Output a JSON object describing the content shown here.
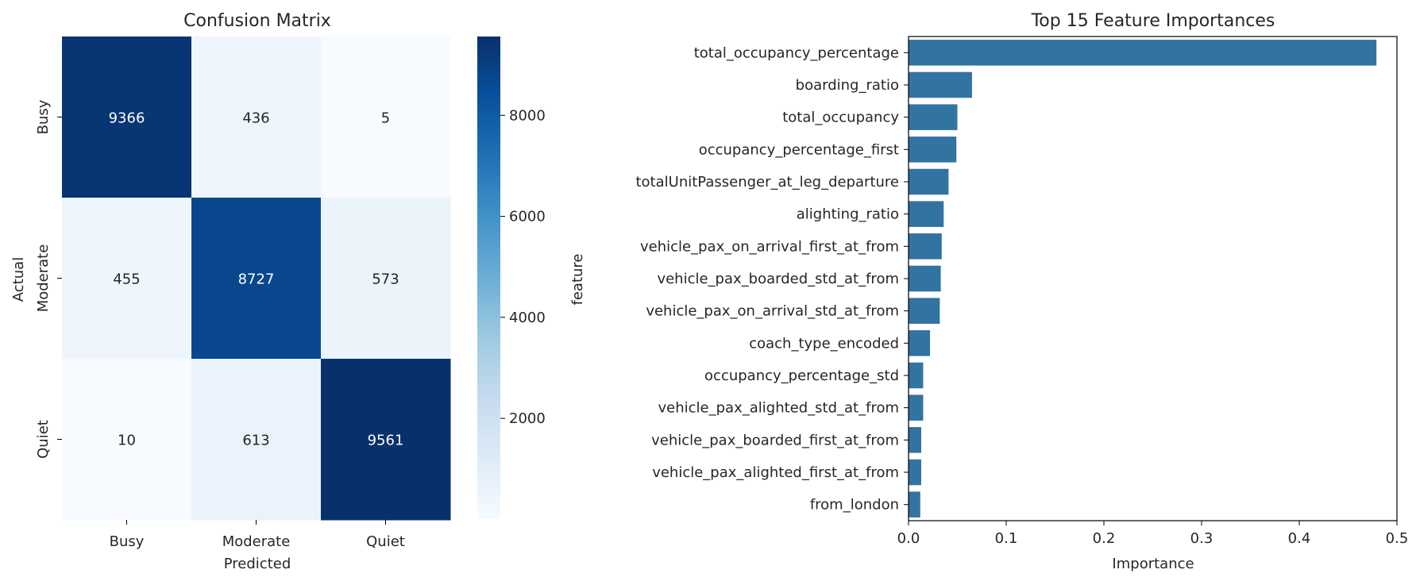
{
  "chart_data": [
    {
      "type": "heatmap",
      "title": "Confusion Matrix",
      "xlabel": "Predicted",
      "ylabel": "Actual",
      "x_categories": [
        "Busy",
        "Moderate",
        "Quiet"
      ],
      "y_categories": [
        "Busy",
        "Moderate",
        "Quiet"
      ],
      "values": [
        [
          9366,
          436,
          5
        ],
        [
          455,
          8727,
          573
        ],
        [
          10,
          613,
          9561
        ]
      ],
      "colormap": "Blues",
      "colorbar": {
        "ticks": [
          2000,
          4000,
          6000,
          8000
        ],
        "range": [
          5,
          9561
        ]
      }
    },
    {
      "type": "bar",
      "orientation": "horizontal",
      "title": "Top 15 Feature Importances",
      "xlabel": "Importance",
      "ylabel": "feature",
      "categories": [
        "total_occupancy_percentage",
        "boarding_ratio",
        "total_occupancy",
        "occupancy_percentage_first",
        "totalUnitPassenger_at_leg_departure",
        "alighting_ratio",
        "vehicle_pax_on_arrival_first_at_from",
        "vehicle_pax_boarded_std_at_from",
        "vehicle_pax_on_arrival_std_at_from",
        "coach_type_encoded",
        "occupancy_percentage_std",
        "vehicle_pax_alighted_std_at_from",
        "vehicle_pax_boarded_first_at_from",
        "vehicle_pax_alighted_first_at_from",
        "from_london"
      ],
      "values": [
        0.479,
        0.065,
        0.05,
        0.049,
        0.041,
        0.036,
        0.034,
        0.033,
        0.032,
        0.022,
        0.015,
        0.015,
        0.013,
        0.013,
        0.012
      ],
      "xlim": [
        0,
        0.5
      ],
      "xticks": [
        0.0,
        0.1,
        0.2,
        0.3,
        0.4,
        0.5
      ],
      "bar_color": "#3274a1"
    }
  ]
}
